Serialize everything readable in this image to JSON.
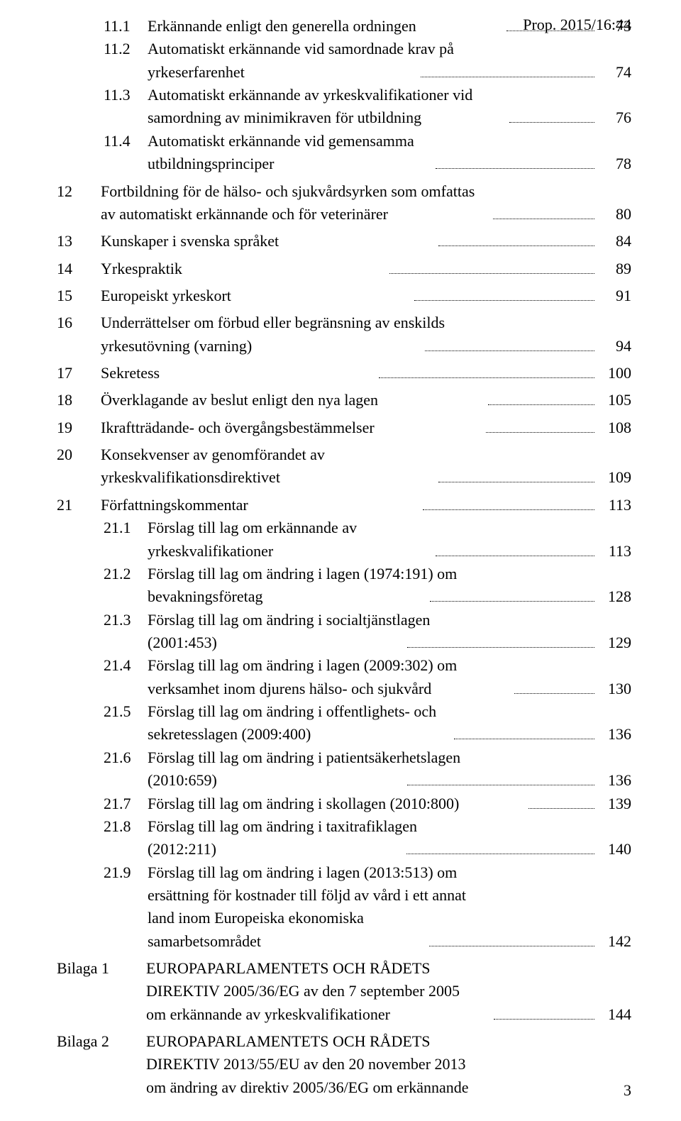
{
  "headerRef": "Prop. 2015/16:44",
  "pageNumber": "3",
  "toc": {
    "s11_1": {
      "num": "11.1",
      "text": "Erkännande enligt den generella ordningen",
      "page": "73"
    },
    "s11_2": {
      "num": "11.2",
      "line1": "Automatiskt erkännande vid samordnade krav på",
      "line2": "yrkeserfarenhet",
      "page": "74"
    },
    "s11_3": {
      "num": "11.3",
      "line1": "Automatiskt erkännande av yrkeskvalifikationer vid",
      "line2": "samordning av minimikraven för utbildning",
      "page": "76"
    },
    "s11_4": {
      "num": "11.4",
      "line1": "Automatiskt erkännande vid gemensamma",
      "line2": "utbildningsprinciper",
      "page": "78"
    },
    "s12": {
      "num": "12",
      "line1": "Fortbildning för de hälso- och sjukvårdsyrken som omfattas",
      "line2": "av automatiskt erkännande och för veterinärer",
      "page": "80"
    },
    "s13": {
      "num": "13",
      "text": "Kunskaper i svenska språket",
      "page": "84"
    },
    "s14": {
      "num": "14",
      "text": "Yrkespraktik",
      "page": "89"
    },
    "s15": {
      "num": "15",
      "text": "Europeiskt yrkeskort",
      "page": "91"
    },
    "s16": {
      "num": "16",
      "line1": "Underrättelser om förbud eller begränsning av enskilds",
      "line2": "yrkesutövning (varning)",
      "page": "94"
    },
    "s17": {
      "num": "17",
      "text": "Sekretess",
      "page": "100"
    },
    "s18": {
      "num": "18",
      "text": "Överklagande av beslut enligt den nya lagen",
      "page": "105"
    },
    "s19": {
      "num": "19",
      "text": "Ikraftträdande- och övergångsbestämmelser",
      "page": "108"
    },
    "s20": {
      "num": "20",
      "line1": "Konsekvenser av genomförandet av",
      "line2": "yrkeskvalifikationsdirektivet",
      "page": "109"
    },
    "s21": {
      "num": "21",
      "text": "Författningskommentar",
      "page": "113"
    },
    "s21_1": {
      "num": "21.1",
      "line1": "Förslag till lag om erkännande av",
      "line2": "yrkeskvalifikationer",
      "page": "113"
    },
    "s21_2": {
      "num": "21.2",
      "line1": "Förslag till lag om ändring i lagen (1974:191) om",
      "line2": "bevakningsföretag",
      "page": "128"
    },
    "s21_3": {
      "num": "21.3",
      "line1": "Förslag till lag om ändring i socialtjänstlagen",
      "line2": "(2001:453)",
      "page": "129"
    },
    "s21_4": {
      "num": "21.4",
      "line1": "Förslag till lag om ändring i lagen (2009:302) om",
      "line2": "verksamhet inom djurens hälso- och sjukvård",
      "page": "130"
    },
    "s21_5": {
      "num": "21.5",
      "line1": "Förslag till lag om ändring i offentlighets- och",
      "line2": "sekretesslagen (2009:400)",
      "page": "136"
    },
    "s21_6": {
      "num": "21.6",
      "line1": "Förslag till lag om ändring i patientsäkerhetslagen",
      "line2": "(2010:659)",
      "page": "136"
    },
    "s21_7": {
      "num": "21.7",
      "text": "Förslag till lag om ändring i skollagen (2010:800)",
      "page": "139"
    },
    "s21_8": {
      "num": "21.8",
      "line1": "Förslag till lag om ändring i taxitrafiklagen",
      "line2": "(2012:211)",
      "page": "140"
    },
    "s21_9": {
      "num": "21.9",
      "line1": "Förslag till lag om ändring i lagen (2013:513) om",
      "line2": "ersättning för kostnader till följd av vård i ett annat",
      "line3": "land inom Europeiska ekonomiska",
      "line4": "samarbetsområdet",
      "page": "142"
    },
    "bilaga1": {
      "label": "Bilaga 1",
      "line1": "EUROPAPARLAMENTETS OCH RÅDETS",
      "line2": "DIREKTIV 2005/36/EG av den 7 september 2005",
      "line3": "om erkännande av yrkeskvalifikationer",
      "page": "144"
    },
    "bilaga2": {
      "label": "Bilaga 2",
      "line1": "EUROPAPARLAMENTETS OCH RÅDETS",
      "line2": "DIREKTIV 2013/55/EU av den 20 november 2013",
      "line3": "om ändring av direktiv 2005/36/EG om erkännande"
    }
  }
}
